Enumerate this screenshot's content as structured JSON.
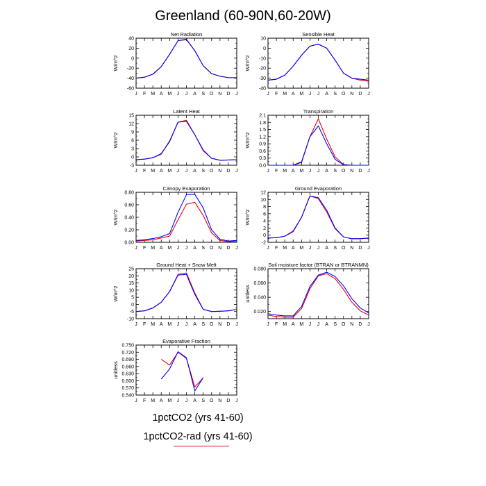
{
  "figure_title": "Greenland (60-90N,60-20W)",
  "legend": {
    "entries": [
      {
        "label": "1pctCO2 (yrs 41-60)",
        "color": "#0000ff"
      },
      {
        "label": "1pctCO2-rad (yrs 41-60)",
        "color": "#e8000b"
      }
    ]
  },
  "chart_data": [
    {
      "type": "line",
      "title": "Net Radiation",
      "ylabel": "W/m^2",
      "x": [
        "J",
        "F",
        "M",
        "A",
        "M",
        "J",
        "J",
        "A",
        "S",
        "O",
        "N",
        "D",
        "J"
      ],
      "ylim": [
        -60,
        40
      ],
      "yticks": [
        -60,
        -40,
        -20,
        0,
        20,
        40
      ],
      "ytick_labels": [
        "-60",
        "-40",
        "-20",
        "0",
        "20",
        "40"
      ],
      "series": [
        {
          "color": "#0000ff",
          "values": [
            -40,
            -38,
            -32,
            -17,
            8,
            35,
            38,
            15,
            -15,
            -31,
            -36,
            -39,
            -39
          ]
        },
        {
          "color": "#e8000b",
          "values": [
            -40,
            -38,
            -32,
            -17,
            8,
            35,
            37,
            15,
            -15,
            -31,
            -36,
            -39,
            -39
          ]
        }
      ]
    },
    {
      "type": "line",
      "title": "Sensible Heat",
      "ylabel": "W/m^2",
      "x": [
        "J",
        "F",
        "M",
        "A",
        "M",
        "J",
        "J",
        "A",
        "S",
        "O",
        "N",
        "D",
        "J"
      ],
      "ylim": [
        -40,
        10
      ],
      "yticks": [
        -40,
        -30,
        -20,
        -10,
        0,
        10
      ],
      "ytick_labels": [
        "-40",
        "-30",
        "-20",
        "-10",
        "0",
        "10"
      ],
      "series": [
        {
          "color": "#0000ff",
          "values": [
            -32,
            -31,
            -27,
            -18,
            -7,
            2,
            4,
            0,
            -12,
            -25,
            -30,
            -31,
            -32
          ]
        },
        {
          "color": "#e8000b",
          "values": [
            -32,
            -31,
            -27,
            -18,
            -7,
            2,
            4,
            0,
            -12,
            -25,
            -30,
            -32,
            -33
          ]
        }
      ]
    },
    {
      "type": "line",
      "title": "Latent Heat",
      "ylabel": "W/m^2",
      "x": [
        "J",
        "F",
        "M",
        "A",
        "M",
        "J",
        "J",
        "A",
        "S",
        "O",
        "N",
        "D",
        "J"
      ],
      "ylim": [
        -3,
        15
      ],
      "yticks": [
        -3,
        0,
        3,
        6,
        9,
        12,
        15
      ],
      "ytick_labels": [
        "-3",
        "0",
        "3",
        "6",
        "9",
        "12",
        "15"
      ],
      "series": [
        {
          "color": "#0000ff",
          "values": [
            -1,
            -0.8,
            -0.3,
            1.2,
            5.5,
            12.5,
            12.8,
            8,
            2.5,
            -0.5,
            -1.2,
            -1.1,
            -1
          ]
        },
        {
          "color": "#e8000b",
          "values": [
            -1,
            -0.8,
            -0.3,
            1.0,
            5.8,
            12.5,
            13.2,
            8,
            2.2,
            -0.5,
            -1.2,
            -1.1,
            -1
          ]
        }
      ]
    },
    {
      "type": "line",
      "title": "Transpiration",
      "ylabel": "W/m^2",
      "x": [
        "J",
        "F",
        "M",
        "A",
        "M",
        "J",
        "J",
        "A",
        "S",
        "O",
        "N",
        "D",
        "J"
      ],
      "ylim": [
        0,
        2.1
      ],
      "yticks": [
        0,
        0.3,
        0.6,
        0.9,
        1.2,
        1.5,
        1.8,
        2.1
      ],
      "ytick_labels": [
        "0.0",
        "0.3",
        "0.6",
        "0.9",
        "1.2",
        "1.5",
        "1.8",
        "2.1"
      ],
      "series": [
        {
          "color": "#0000ff",
          "values": [
            0,
            0,
            0,
            0,
            0.12,
            1.2,
            1.65,
            0.9,
            0.25,
            0.02,
            0,
            0,
            0
          ]
        },
        {
          "color": "#e8000b",
          "values": [
            0,
            0,
            0,
            0,
            0.15,
            1.2,
            1.95,
            1.1,
            0.35,
            0.03,
            0,
            0,
            0
          ]
        }
      ]
    },
    {
      "type": "line",
      "title": "Canopy Evaporation",
      "ylabel": "W/m^2",
      "x": [
        "J",
        "F",
        "M",
        "A",
        "M",
        "J",
        "J",
        "A",
        "S",
        "O",
        "N",
        "D",
        "J"
      ],
      "ylim": [
        0,
        0.8
      ],
      "yticks": [
        0,
        0.2,
        0.4,
        0.6,
        0.8
      ],
      "ytick_labels": [
        "0.00",
        "0.20",
        "0.40",
        "0.60",
        "0.80"
      ],
      "series": [
        {
          "color": "#0000ff",
          "values": [
            0.03,
            0.04,
            0.06,
            0.09,
            0.14,
            0.48,
            0.76,
            0.77,
            0.55,
            0.2,
            0.05,
            0.02,
            0.03
          ]
        },
        {
          "color": "#e8000b",
          "values": [
            0.02,
            0.03,
            0.04,
            0.07,
            0.1,
            0.36,
            0.61,
            0.64,
            0.43,
            0.15,
            0.03,
            0.01,
            0.02
          ]
        }
      ]
    },
    {
      "type": "line",
      "title": "Ground Evaporation",
      "ylabel": "W/m^2",
      "x": [
        "J",
        "F",
        "M",
        "A",
        "M",
        "J",
        "J",
        "A",
        "S",
        "O",
        "N",
        "D",
        "J"
      ],
      "ylim": [
        -2,
        12
      ],
      "yticks": [
        -2,
        0,
        2,
        4,
        6,
        8,
        10,
        12
      ],
      "ytick_labels": [
        "-2",
        "0",
        "2",
        "4",
        "6",
        "8",
        "10",
        "12"
      ],
      "series": [
        {
          "color": "#0000ff",
          "values": [
            -0.8,
            -0.7,
            -0.3,
            1,
            5,
            11,
            10.5,
            7,
            2,
            -0.5,
            -1,
            -1,
            -0.8
          ]
        },
        {
          "color": "#e8000b",
          "values": [
            -0.8,
            -0.7,
            -0.3,
            1.2,
            5,
            11,
            10.2,
            6.5,
            1.8,
            -0.5,
            -1,
            -1,
            -0.8
          ]
        }
      ]
    },
    {
      "type": "line",
      "title": "Ground Heat + Snow Melt",
      "ylabel": "W/m^2",
      "x": [
        "J",
        "F",
        "M",
        "A",
        "M",
        "J",
        "J",
        "A",
        "S",
        "O",
        "N",
        "D",
        "J"
      ],
      "ylim": [
        -10,
        25
      ],
      "yticks": [
        -10,
        -5,
        0,
        5,
        10,
        15,
        20,
        25
      ],
      "ytick_labels": [
        "-10",
        "-5",
        "0",
        "5",
        "10",
        "15",
        "20",
        "25"
      ],
      "series": [
        {
          "color": "#0000ff",
          "values": [
            -5,
            -4.5,
            -2.5,
            1.5,
            9,
            20.5,
            21,
            7,
            -3.5,
            -5,
            -4.8,
            -4.5,
            -3.5
          ]
        },
        {
          "color": "#e8000b",
          "values": [
            -5,
            -4.5,
            -2.5,
            1.5,
            9,
            21,
            22,
            8,
            -3.5,
            -5,
            -4.8,
            -4.5,
            -3.5
          ]
        }
      ]
    },
    {
      "type": "line",
      "title": "Soil moisture factor (BTRAN or BTRANMN)",
      "ylabel": "unitless",
      "x": [
        "J",
        "F",
        "M",
        "A",
        "M",
        "J",
        "J",
        "A",
        "S",
        "O",
        "N",
        "D",
        "J"
      ],
      "ylim": [
        0.01,
        0.08
      ],
      "yticks": [
        0.02,
        0.04,
        0.06,
        0.08
      ],
      "ytick_labels": [
        "0.020",
        "0.040",
        "0.060",
        "0.080"
      ],
      "series": [
        {
          "color": "#0000ff",
          "values": [
            0.017,
            0.015,
            0.014,
            0.014,
            0.027,
            0.055,
            0.071,
            0.075,
            0.069,
            0.056,
            0.038,
            0.025,
            0.018
          ]
        },
        {
          "color": "#e8000b",
          "values": [
            0.015,
            0.013,
            0.012,
            0.012,
            0.024,
            0.052,
            0.07,
            0.073,
            0.066,
            0.051,
            0.033,
            0.021,
            0.015
          ]
        }
      ]
    },
    {
      "type": "line",
      "title": "Evaporative Fraction",
      "ylabel": "unitless",
      "x": [
        "J",
        "F",
        "M",
        "A",
        "M",
        "J",
        "J",
        "A",
        "S",
        "O",
        "N",
        "D",
        "J"
      ],
      "ylim": [
        0.54,
        0.75
      ],
      "yticks": [
        0.54,
        0.57,
        0.6,
        0.63,
        0.66,
        0.69,
        0.72,
        0.75
      ],
      "ytick_labels": [
        "0.540",
        "0.570",
        "0.600",
        "0.630",
        "0.660",
        "0.690",
        "0.720",
        "0.750"
      ],
      "series": [
        {
          "color": "#0000ff",
          "values": [
            null,
            null,
            null,
            0.607,
            0.65,
            0.722,
            0.697,
            0.557,
            0.613,
            null,
            null,
            null,
            null
          ]
        },
        {
          "color": "#e8000b",
          "values": [
            null,
            null,
            null,
            0.69,
            0.666,
            0.72,
            0.694,
            0.574,
            0.612,
            null,
            null,
            null,
            null
          ]
        }
      ]
    }
  ]
}
